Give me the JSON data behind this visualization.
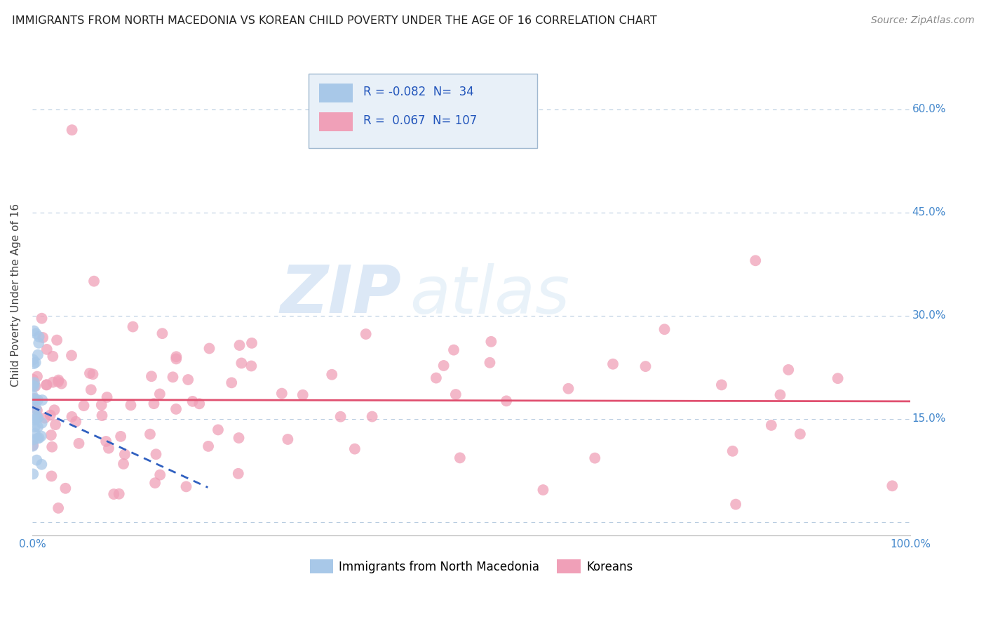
{
  "title": "IMMIGRANTS FROM NORTH MACEDONIA VS KOREAN CHILD POVERTY UNDER THE AGE OF 16 CORRELATION CHART",
  "source": "Source: ZipAtlas.com",
  "ylabel": "Child Poverty Under the Age of 16",
  "xlim": [
    0.0,
    1.0
  ],
  "ylim": [
    -0.02,
    0.68
  ],
  "ytick_positions": [
    0.0,
    0.15,
    0.3,
    0.45,
    0.6
  ],
  "ytick_labels": [
    "",
    "15.0%",
    "30.0%",
    "45.0%",
    "60.0%"
  ],
  "blue_R": -0.082,
  "blue_N": 34,
  "pink_R": 0.067,
  "pink_N": 107,
  "blue_color": "#a8c8e8",
  "pink_color": "#f0a0b8",
  "blue_line_color": "#3060c0",
  "pink_line_color": "#e05070",
  "grid_color": "#b8cce0",
  "background_color": "#ffffff",
  "watermark_zip": "ZIP",
  "watermark_atlas": "atlas",
  "legend_box_color": "#e8f0f8",
  "legend_border_color": "#a0b8d0"
}
